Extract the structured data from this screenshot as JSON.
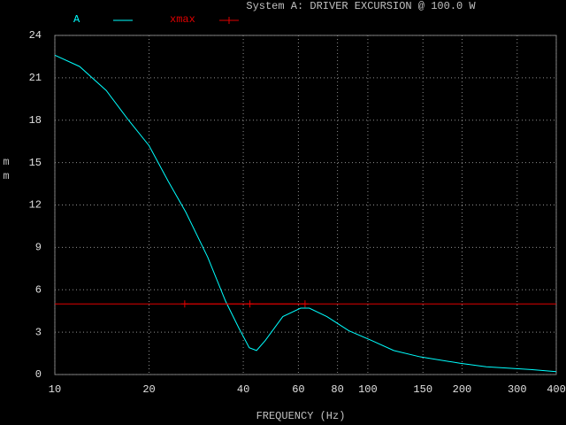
{
  "chart_data": {
    "type": "line",
    "title": "System A: DRIVER EXCURSION @ 100.0 W",
    "x_label": "FREQUENCY (Hz)",
    "y_label": "mm",
    "log_x": true,
    "grid": true,
    "xlim": [
      10,
      400
    ],
    "xticks": [
      10,
      20,
      40,
      60,
      80,
      100,
      150,
      200,
      300,
      400
    ],
    "ylim": [
      0,
      24
    ],
    "yticks": [
      0,
      3,
      6,
      9,
      12,
      15,
      18,
      21,
      24
    ],
    "series": [
      {
        "name": "A",
        "color": "#00ffff",
        "x": [
          10,
          12,
          14.6,
          17.2,
          20,
          23,
          26.2,
          30.8,
          35.1,
          38.7,
          41.8,
          44.1,
          47,
          53.5,
          61,
          65,
          74,
          87,
          103,
          121,
          147,
          197,
          239,
          332,
          400
        ],
        "values": [
          22.6,
          21.8,
          20.1,
          18.0,
          16.2,
          13.7,
          11.5,
          8.3,
          5.2,
          3.3,
          1.9,
          1.7,
          2.4,
          4.1,
          4.7,
          4.7,
          4.1,
          3.1,
          2.4,
          1.7,
          1.25,
          0.8,
          0.55,
          0.35,
          0.2
        ]
      },
      {
        "name": "xmax",
        "color": "#e00000",
        "marker": "+",
        "x": [
          26,
          42,
          63
        ],
        "values": [
          5,
          5,
          5
        ]
      }
    ]
  }
}
